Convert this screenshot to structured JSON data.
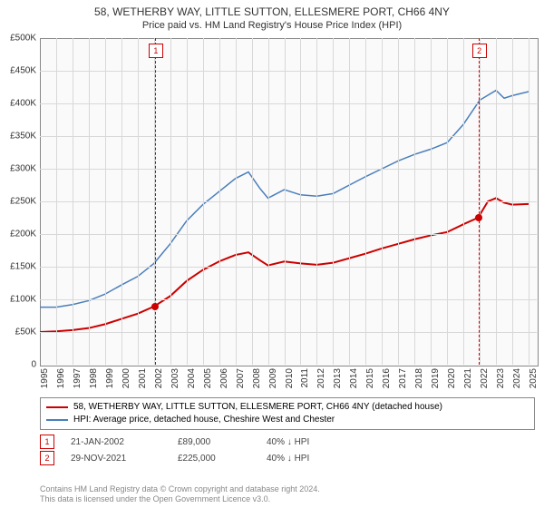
{
  "title": "58, WETHERBY WAY, LITTLE SUTTON, ELLESMERE PORT, CH66 4NY",
  "subtitle": "Price paid vs. HM Land Registry's House Price Index (HPI)",
  "chart": {
    "type": "line",
    "background_color": "#fafafa",
    "grid_color": "#d8d8d8",
    "border_color": "#888888",
    "x_start": 1995,
    "x_end": 2025.5,
    "xtick_step": 1,
    "y_start": 0,
    "y_end": 500000,
    "ytick_step": 50000,
    "ylabels": [
      "0",
      "£50K",
      "£100K",
      "£150K",
      "£200K",
      "£250K",
      "£300K",
      "£350K",
      "£400K",
      "£450K",
      "£500K"
    ],
    "xlabels": [
      "1995",
      "1996",
      "1997",
      "1998",
      "1999",
      "2000",
      "2001",
      "2002",
      "2003",
      "2004",
      "2005",
      "2006",
      "2007",
      "2008",
      "2009",
      "2010",
      "2011",
      "2012",
      "2013",
      "2014",
      "2015",
      "2016",
      "2017",
      "2018",
      "2019",
      "2020",
      "2021",
      "2022",
      "2023",
      "2024",
      "2025"
    ],
    "series": [
      {
        "name": "58, WETHERBY WAY, LITTLE SUTTON, ELLESMERE PORT, CH66 4NY (detached house)",
        "color": "#cc0000",
        "width": 2,
        "data": [
          [
            1995,
            50000
          ],
          [
            1996,
            51000
          ],
          [
            1997,
            53000
          ],
          [
            1998,
            56000
          ],
          [
            1999,
            62000
          ],
          [
            2000,
            70000
          ],
          [
            2001,
            78000
          ],
          [
            2002,
            89000
          ],
          [
            2003,
            105000
          ],
          [
            2004,
            128000
          ],
          [
            2005,
            145000
          ],
          [
            2006,
            158000
          ],
          [
            2007,
            168000
          ],
          [
            2007.8,
            172000
          ],
          [
            2008.5,
            160000
          ],
          [
            2009,
            152000
          ],
          [
            2010,
            158000
          ],
          [
            2011,
            155000
          ],
          [
            2012,
            153000
          ],
          [
            2013,
            156000
          ],
          [
            2014,
            163000
          ],
          [
            2015,
            170000
          ],
          [
            2016,
            178000
          ],
          [
            2017,
            185000
          ],
          [
            2018,
            192000
          ],
          [
            2019,
            198000
          ],
          [
            2020,
            203000
          ],
          [
            2021,
            215000
          ],
          [
            2021.9,
            225000
          ],
          [
            2022.5,
            250000
          ],
          [
            2023,
            255000
          ],
          [
            2023.5,
            248000
          ],
          [
            2024,
            245000
          ],
          [
            2025,
            246000
          ]
        ]
      },
      {
        "name": "HPI: Average price, detached house, Cheshire West and Chester",
        "color": "#4a7ebb",
        "width": 1.5,
        "data": [
          [
            1995,
            88000
          ],
          [
            1996,
            88000
          ],
          [
            1997,
            92000
          ],
          [
            1998,
            98000
          ],
          [
            1999,
            108000
          ],
          [
            2000,
            122000
          ],
          [
            2001,
            135000
          ],
          [
            2002,
            155000
          ],
          [
            2003,
            185000
          ],
          [
            2004,
            220000
          ],
          [
            2005,
            245000
          ],
          [
            2006,
            265000
          ],
          [
            2007,
            285000
          ],
          [
            2007.8,
            295000
          ],
          [
            2008.5,
            270000
          ],
          [
            2009,
            255000
          ],
          [
            2010,
            268000
          ],
          [
            2011,
            260000
          ],
          [
            2012,
            258000
          ],
          [
            2013,
            262000
          ],
          [
            2014,
            275000
          ],
          [
            2015,
            288000
          ],
          [
            2016,
            300000
          ],
          [
            2017,
            312000
          ],
          [
            2018,
            322000
          ],
          [
            2019,
            330000
          ],
          [
            2020,
            340000
          ],
          [
            2021,
            368000
          ],
          [
            2022,
            405000
          ],
          [
            2023,
            420000
          ],
          [
            2023.5,
            408000
          ],
          [
            2024,
            412000
          ],
          [
            2025,
            418000
          ]
        ]
      }
    ],
    "sale_markers": [
      {
        "n": "1",
        "x": 2002.06,
        "y": 89000,
        "color": "#cc0000"
      },
      {
        "n": "2",
        "x": 2021.92,
        "y": 225000,
        "color": "#cc0000"
      }
    ]
  },
  "legend": {
    "rows": [
      {
        "color": "#cc0000",
        "label": "58, WETHERBY WAY, LITTLE SUTTON, ELLESMERE PORT, CH66 4NY (detached house)"
      },
      {
        "color": "#4a7ebb",
        "label": "HPI: Average price, detached house, Cheshire West and Chester"
      }
    ]
  },
  "sales": [
    {
      "n": "1",
      "color": "#cc0000",
      "date": "21-JAN-2002",
      "price": "£89,000",
      "hpi": "40% ↓ HPI"
    },
    {
      "n": "2",
      "color": "#cc0000",
      "date": "29-NOV-2021",
      "price": "£225,000",
      "hpi": "40% ↓ HPI"
    }
  ],
  "footer": {
    "line1": "Contains HM Land Registry data © Crown copyright and database right 2024.",
    "line2": "This data is licensed under the Open Government Licence v3.0."
  }
}
